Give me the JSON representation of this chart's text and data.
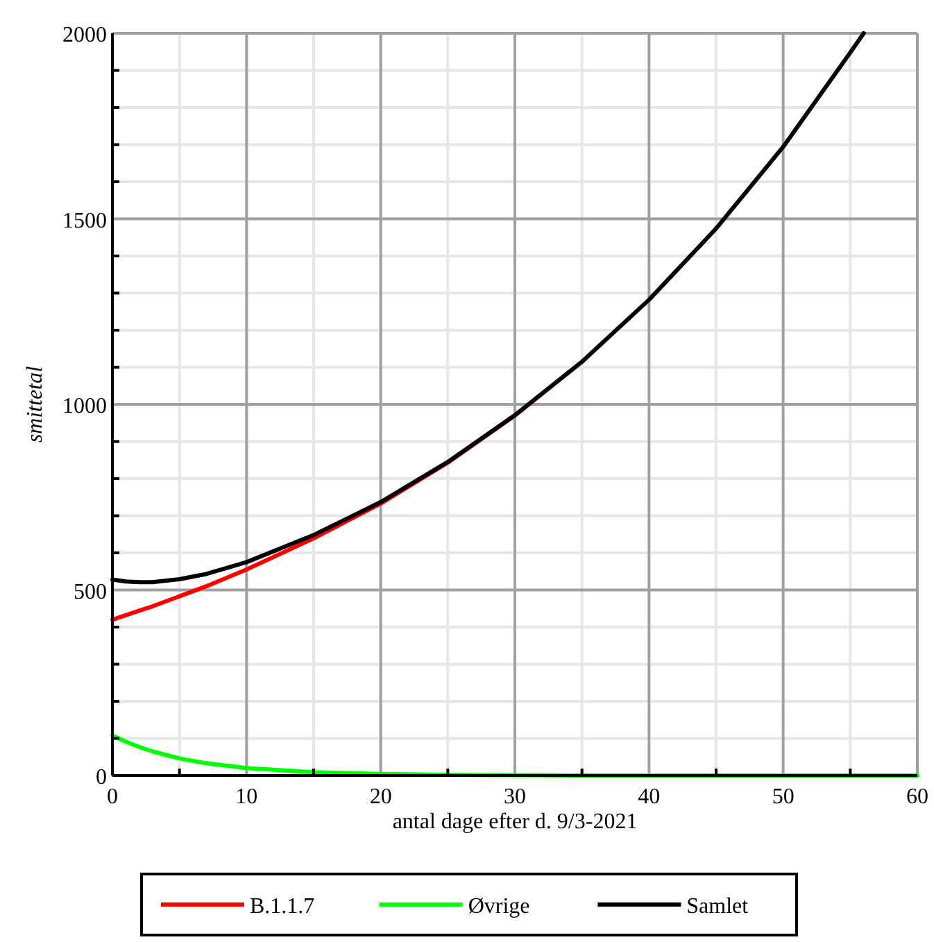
{
  "chart_data": {
    "type": "line",
    "xlabel": "antal dage efter d. 9/3-2021",
    "ylabel": "smittetal",
    "x": [
      0,
      1,
      2,
      3,
      5,
      7,
      10,
      15,
      20,
      25,
      30,
      35,
      40,
      45,
      50,
      55,
      56,
      60
    ],
    "series": [
      {
        "name": "B.1.1.7",
        "color": "#ff0000",
        "values": [
          420,
          432,
          444,
          456,
          483,
          510,
          555,
          639,
          733,
          843,
          970,
          1115,
          null,
          null,
          null,
          null,
          null,
          null
        ]
      },
      {
        "name": "Øvrige",
        "color": "#00ff00",
        "values": [
          108,
          91,
          77,
          65,
          46,
          33,
          20,
          9,
          4,
          2,
          1,
          0,
          0,
          0,
          0,
          0,
          0,
          0
        ]
      },
      {
        "name": "Samlet",
        "color": "#000000",
        "values": [
          528,
          523,
          521,
          521,
          529,
          543,
          575,
          648,
          737,
          845,
          971,
          1115,
          1282,
          1474,
          1694,
          1948,
          2000,
          null
        ]
      }
    ],
    "xlim": [
      0,
      60
    ],
    "ylim": [
      0,
      2000
    ],
    "xticks": [
      0,
      10,
      20,
      30,
      40,
      50,
      60
    ],
    "yticks": [
      0,
      500,
      1000,
      1500,
      2000
    ],
    "grid": true,
    "legend": "bottom",
    "line_style": "solid"
  }
}
